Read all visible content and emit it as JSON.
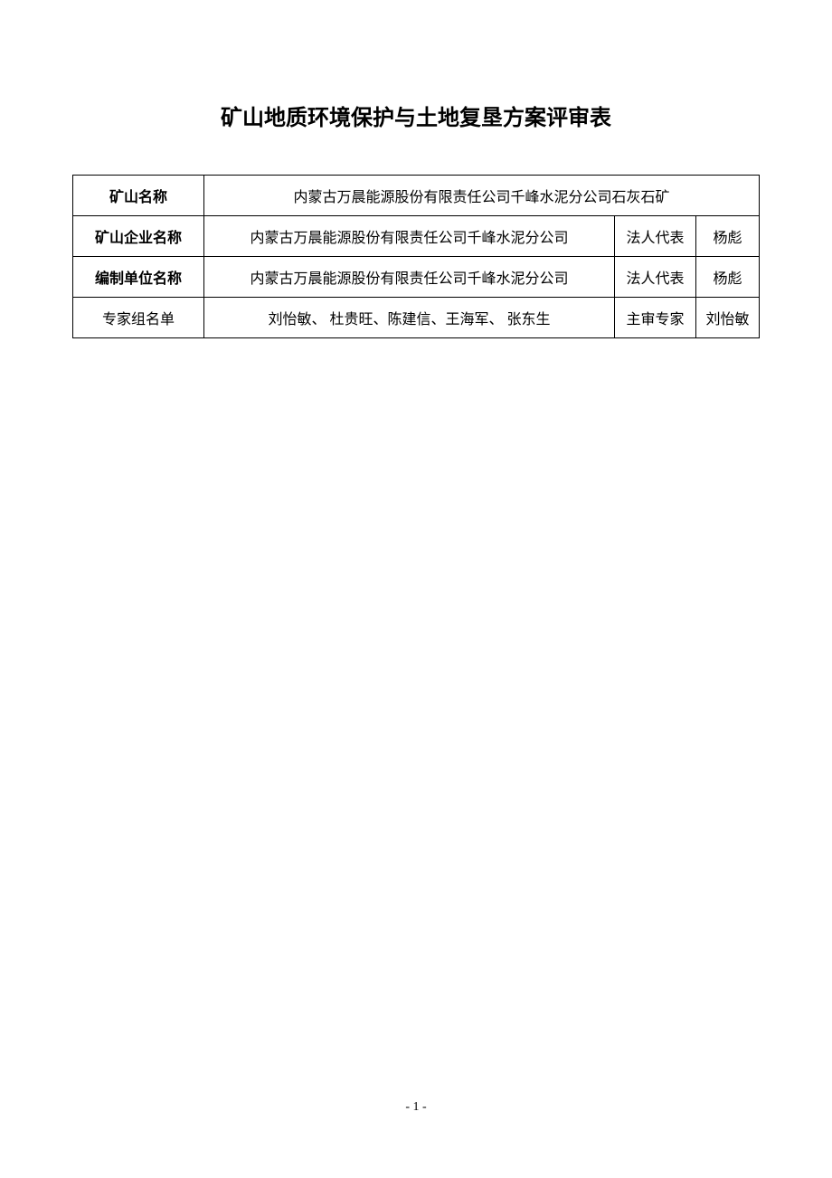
{
  "title": "矿山地质环境保护与土地复垦方案评审表",
  "table": {
    "rows": [
      {
        "label": "矿山名称",
        "value": "内蒙古万晨能源股份有限责任公司千峰水泥分公司石灰石矿",
        "colspan": 3,
        "labelBold": true
      },
      {
        "label": "矿山企业名称",
        "value": "内蒙古万晨能源股份有限责任公司千峰水泥分公司",
        "subLabel": "法人代表",
        "subValue": "杨彪",
        "labelBold": true
      },
      {
        "label": "编制单位名称",
        "value": "内蒙古万晨能源股份有限责任公司千峰水泥分公司",
        "subLabel": "法人代表",
        "subValue": "杨彪",
        "labelBold": true
      },
      {
        "label": "专家组名单",
        "value": "刘怡敏、 杜贵旺、陈建信、王海军、 张东生",
        "subLabel": "主审专家",
        "subValue": "刘怡敏",
        "labelBold": false
      }
    ]
  },
  "pageNumber": "- 1 -",
  "colors": {
    "background": "#ffffff",
    "text": "#000000",
    "border": "#000000"
  },
  "typography": {
    "titleFontSize": 24,
    "bodyFontSize": 16,
    "pageNumberFontSize": 14
  }
}
